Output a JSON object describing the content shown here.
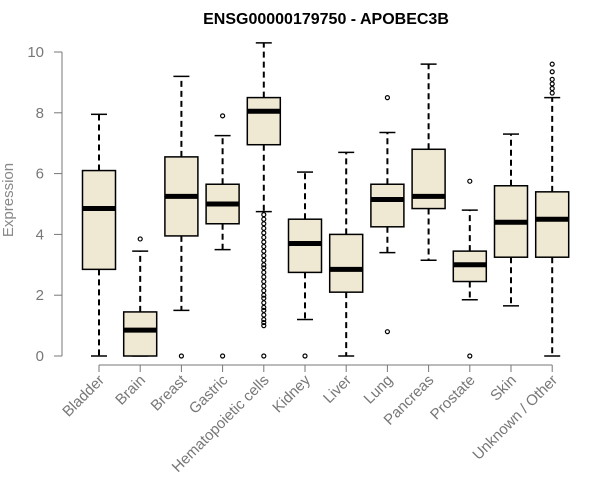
{
  "chart_data": {
    "type": "boxplot",
    "title": "ENSG00000179750 - APOBEC3B",
    "xlabel": "",
    "ylabel": "Expression",
    "ylim": [
      0,
      10
    ],
    "yticks": [
      0,
      2,
      4,
      6,
      8,
      10
    ],
    "box_fill": "#efe8d2",
    "outline_color": "#000000",
    "axis_color": "#777777",
    "categories": [
      "Bladder",
      "Brain",
      "Breast",
      "Gastric",
      "Hematopoietic cells",
      "Kidney",
      "Liver",
      "Lung",
      "Pancreas",
      "Prostate",
      "Skin",
      "Unknown / Other"
    ],
    "boxes": [
      {
        "name": "Bladder",
        "whisker_low": 0.0,
        "q1": 2.85,
        "median": 4.85,
        "q3": 6.1,
        "whisker_high": 7.95,
        "outliers": []
      },
      {
        "name": "Brain",
        "whisker_low": 0.0,
        "q1": 0.0,
        "median": 0.85,
        "q3": 1.45,
        "whisker_high": 3.45,
        "outliers": [
          3.85
        ]
      },
      {
        "name": "Breast",
        "whisker_low": 1.5,
        "q1": 3.95,
        "median": 5.25,
        "q3": 6.55,
        "whisker_high": 9.2,
        "outliers": [
          0.0
        ]
      },
      {
        "name": "Gastric",
        "whisker_low": 3.5,
        "q1": 4.35,
        "median": 5.0,
        "q3": 5.65,
        "whisker_high": 7.25,
        "outliers": [
          0.0,
          7.9
        ]
      },
      {
        "name": "Hematopoietic cells",
        "whisker_low": 4.75,
        "q1": 6.95,
        "median": 8.05,
        "q3": 8.5,
        "whisker_high": 10.3,
        "outliers": [
          0.0,
          1.0,
          1.1,
          1.2,
          1.35,
          1.5,
          1.6,
          1.75,
          1.9,
          2.0,
          2.15,
          2.3,
          2.45,
          2.6,
          2.75,
          2.9,
          3.0,
          3.15,
          3.3,
          3.45,
          3.6,
          3.75,
          3.9,
          4.05,
          4.2,
          4.35,
          4.5,
          4.65
        ]
      },
      {
        "name": "Kidney",
        "whisker_low": 1.2,
        "q1": 2.75,
        "median": 3.7,
        "q3": 4.5,
        "whisker_high": 6.05,
        "outliers": [
          0.0
        ]
      },
      {
        "name": "Liver",
        "whisker_low": 0.0,
        "q1": 2.1,
        "median": 2.85,
        "q3": 4.0,
        "whisker_high": 6.7,
        "outliers": []
      },
      {
        "name": "Lung",
        "whisker_low": 3.4,
        "q1": 4.25,
        "median": 5.15,
        "q3": 5.65,
        "whisker_high": 7.35,
        "outliers": [
          0.8,
          8.5
        ]
      },
      {
        "name": "Pancreas",
        "whisker_low": 3.15,
        "q1": 4.85,
        "median": 5.25,
        "q3": 6.8,
        "whisker_high": 9.6,
        "outliers": []
      },
      {
        "name": "Prostate",
        "whisker_low": 1.85,
        "q1": 2.45,
        "median": 3.0,
        "q3": 3.45,
        "whisker_high": 4.8,
        "outliers": [
          0.0,
          5.75
        ]
      },
      {
        "name": "Skin",
        "whisker_low": 1.65,
        "q1": 3.25,
        "median": 4.4,
        "q3": 5.6,
        "whisker_high": 7.3,
        "outliers": []
      },
      {
        "name": "Unknown / Other",
        "whisker_low": 0.0,
        "q1": 3.25,
        "median": 4.5,
        "q3": 5.4,
        "whisker_high": 8.5,
        "outliers": [
          8.65,
          8.8,
          8.95,
          9.1,
          9.35,
          9.6
        ]
      }
    ]
  }
}
